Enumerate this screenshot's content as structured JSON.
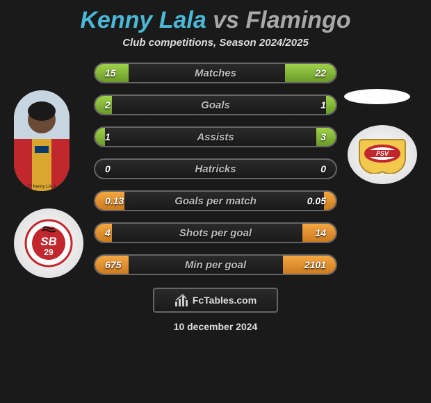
{
  "title": {
    "player1": "Kenny Lala",
    "vs": "vs",
    "player2": "Flamingo"
  },
  "subtitle": "Club competitions, Season 2024/2025",
  "colors": {
    "player1_accent": "#4ab8d6",
    "player2_accent": "#a8a8a8",
    "green_top": "#9fd24a",
    "green_bottom": "#6a9a28",
    "orange_top": "#f5a742",
    "orange_bottom": "#cc7a1f",
    "background": "#1a1a1a",
    "row_border": "#666"
  },
  "rows": [
    {
      "label": "Matches",
      "left": "15",
      "right": "22",
      "variant": "green",
      "fill_left_pct": 14,
      "fill_right_pct": 21
    },
    {
      "label": "Goals",
      "left": "2",
      "right": "1",
      "variant": "green",
      "fill_left_pct": 7,
      "fill_right_pct": 4
    },
    {
      "label": "Assists",
      "left": "1",
      "right": "3",
      "variant": "green",
      "fill_left_pct": 4,
      "fill_right_pct": 8
    },
    {
      "label": "Hatricks",
      "left": "0",
      "right": "0",
      "variant": "green",
      "fill_left_pct": 0,
      "fill_right_pct": 0
    },
    {
      "label": "Goals per match",
      "left": "0.13",
      "right": "0.05",
      "variant": "orange",
      "fill_left_pct": 12,
      "fill_right_pct": 5
    },
    {
      "label": "Shots per goal",
      "left": "4",
      "right": "14",
      "variant": "orange",
      "fill_left_pct": 7,
      "fill_right_pct": 14
    },
    {
      "label": "Min per goal",
      "left": "675",
      "right": "2101",
      "variant": "orange",
      "fill_left_pct": 14,
      "fill_right_pct": 22
    }
  ],
  "footer_brand": "FcTables.com",
  "date": "10 december 2024"
}
